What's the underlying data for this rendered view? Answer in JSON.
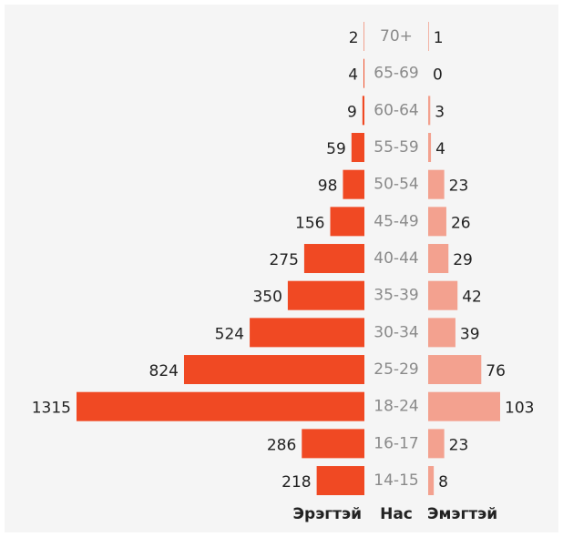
{
  "chart_data": {
    "type": "pyramid",
    "ylabel": "Нас",
    "categories": [
      "70+",
      "65-69",
      "60-64",
      "55-59",
      "50-54",
      "45-49",
      "40-44",
      "35-39",
      "30-34",
      "25-29",
      "18-24",
      "16-17",
      "14-15"
    ],
    "series": [
      {
        "name": "Эрэгтэй",
        "color": "#f04923",
        "values": [
          2,
          4,
          9,
          59,
          98,
          156,
          275,
          350,
          524,
          824,
          1315,
          286,
          218
        ]
      },
      {
        "name": "Эмэгтэй",
        "color": "#f3a18f",
        "values": [
          1,
          0,
          3,
          4,
          23,
          26,
          29,
          42,
          39,
          76,
          103,
          23,
          8
        ]
      }
    ]
  }
}
